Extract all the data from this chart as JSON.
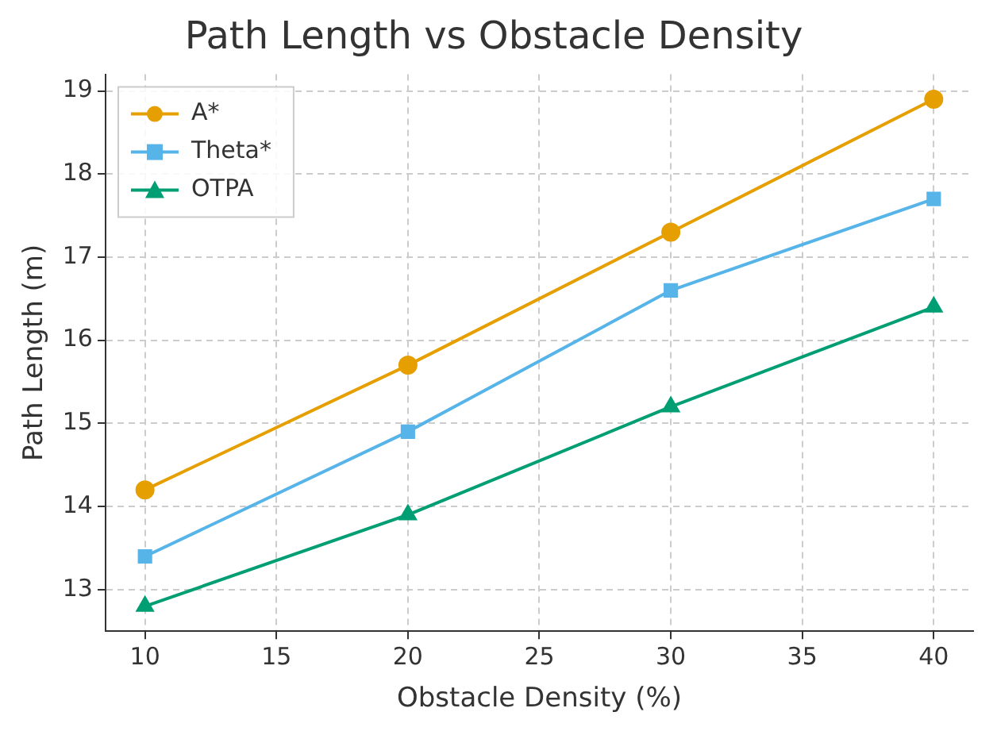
{
  "chart_data": {
    "type": "line",
    "title": "Path Length vs Obstacle Density",
    "xlabel": "Obstacle Density (%)",
    "ylabel": "Path Length (m)",
    "x": [
      10,
      20,
      30,
      40
    ],
    "series": [
      {
        "name": "A*",
        "color": "#e69f00",
        "marker": "circle",
        "values": [
          14.2,
          15.7,
          17.3,
          18.9
        ]
      },
      {
        "name": "Theta*",
        "color": "#56b4e9",
        "marker": "square",
        "values": [
          13.4,
          14.9,
          16.6,
          17.7
        ]
      },
      {
        "name": "OTPA",
        "color": "#009e73",
        "marker": "triangle",
        "values": [
          12.8,
          13.9,
          15.2,
          16.4
        ]
      }
    ],
    "xlim": [
      8.5,
      41.5
    ],
    "xticks": [
      10,
      15,
      20,
      25,
      30,
      35,
      40
    ],
    "ylim": [
      12.5,
      19.2
    ],
    "yticks": [
      13,
      14,
      15,
      16,
      17,
      18,
      19
    ],
    "grid": true,
    "legend": "top left",
    "line_style": "solid"
  }
}
